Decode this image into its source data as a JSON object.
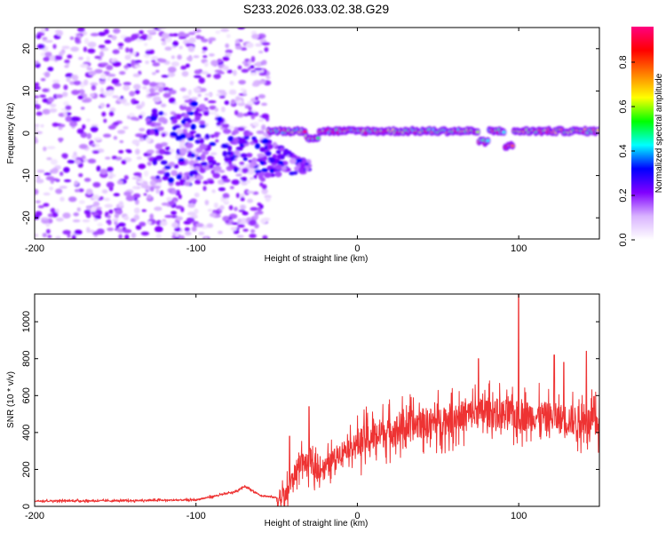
{
  "title": "S233.2026.033.02.38.G29",
  "chart_data": [
    {
      "type": "heatmap",
      "name": "spectrogram",
      "xlabel": "Height of straight line (km)",
      "ylabel": "Frequency (Hz)",
      "xlim": [
        -200,
        150
      ],
      "ylim": [
        -25,
        25
      ],
      "xticks": [
        -200,
        -100,
        0,
        100
      ],
      "xtick_labels": [
        "-200",
        "-100",
        "0",
        "100"
      ],
      "yticks": [
        -20,
        -10,
        0,
        10,
        20
      ],
      "ytick_labels": [
        "-20",
        "-10",
        "0",
        "10",
        "20"
      ],
      "colorbar": {
        "label": "Normalized spectral amplitude",
        "range": [
          0,
          0.96
        ],
        "ticks": [
          0,
          0.2,
          0.4,
          0.6,
          0.8
        ],
        "tick_labels": [
          "0.0",
          "0.2",
          "0.4",
          "0.6",
          "0.8"
        ],
        "colors": [
          "#ffffff",
          "#d9b3ff",
          "#8000ff",
          "#0000ff",
          "#00ffff",
          "#00ff00",
          "#ffff00",
          "#ff8000",
          "#ff0000",
          "#ff0080"
        ]
      },
      "features": {
        "noisy_region_x": [
          -200,
          -55
        ],
        "signal_track_x": [
          -55,
          150
        ],
        "signal_track_frequency_hz": 0.5,
        "peak_amplitude": 0.9
      }
    },
    {
      "type": "line",
      "name": "snr",
      "xlabel": "Height of straight line (km)",
      "ylabel": "SNR (10 * v/v)",
      "xlim": [
        -200,
        150
      ],
      "ylim": [
        0,
        1150
      ],
      "xticks": [
        -200,
        -100,
        0,
        100
      ],
      "xtick_labels": [
        "-200",
        "-100",
        "0",
        "100"
      ],
      "yticks": [
        0,
        200,
        400,
        600,
        800,
        1000
      ],
      "ytick_labels": [
        "0",
        "200",
        "400",
        "600",
        "800",
        "1000"
      ],
      "color": "#ee3333",
      "series": [
        {
          "name": "SNR",
          "x": [
            -200,
            -150,
            -100,
            -75,
            -70,
            -60,
            -45,
            -40,
            -35,
            -30,
            -25,
            -20,
            -10,
            0,
            10,
            20,
            30,
            40,
            50,
            60,
            70,
            80,
            90,
            100,
            110,
            120,
            130,
            140,
            150
          ],
          "values": [
            30,
            30,
            35,
            80,
            110,
            60,
            40,
            150,
            250,
            220,
            200,
            210,
            300,
            340,
            380,
            410,
            430,
            450,
            460,
            480,
            500,
            510,
            500,
            490,
            490,
            480,
            470,
            460,
            450
          ],
          "spikes": [
            {
              "x": -42,
              "value": 380
            },
            {
              "x": -30,
              "value": 540
            },
            {
              "x": 75,
              "value": 800
            },
            {
              "x": 100,
              "value": 1150
            },
            {
              "x": 122,
              "value": 820
            },
            {
              "x": 128,
              "value": 780
            },
            {
              "x": 142,
              "value": 840
            }
          ]
        }
      ]
    }
  ]
}
